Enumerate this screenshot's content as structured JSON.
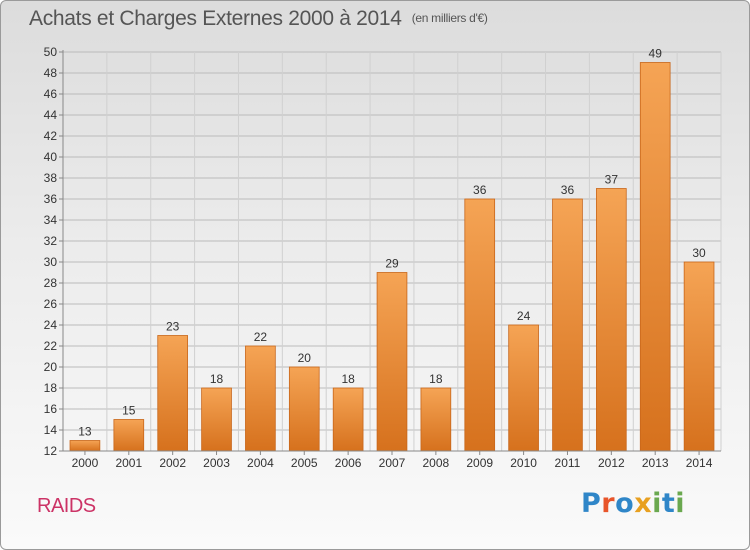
{
  "header": {
    "title": "Achats et Charges Externes 2000 à 2014",
    "unit": "(en milliers d'€)"
  },
  "footer": {
    "commune": "RAIDS"
  },
  "logo": {
    "text": "Proxiti",
    "letters": [
      {
        "ch": "P",
        "color": "#2f86c8"
      },
      {
        "ch": "r",
        "color": "#e8552a"
      },
      {
        "ch": "o",
        "color": "#2f86c8"
      },
      {
        "ch": "x",
        "color": "#e8a020"
      },
      {
        "ch": "i",
        "color": "#6aa84f"
      },
      {
        "ch": "t",
        "color": "#2f86c8"
      },
      {
        "ch": "i",
        "color": "#6aa84f"
      }
    ]
  },
  "colors": {
    "bar_top": "#f5a455",
    "bar_bottom": "#d6711d",
    "bar_edge": "#c8661a",
    "grid": "#bbbbbb",
    "text": "#333333"
  },
  "chart_data": {
    "type": "bar",
    "title": "Achats et Charges Externes 2000 à 2014",
    "subtitle": "(en milliers d'€)",
    "categories": [
      "2000",
      "2001",
      "2002",
      "2003",
      "2004",
      "2005",
      "2006",
      "2007",
      "2008",
      "2009",
      "2010",
      "2011",
      "2012",
      "2013",
      "2014"
    ],
    "values": [
      13,
      15,
      23,
      18,
      22,
      20,
      18,
      29,
      18,
      36,
      24,
      36,
      37,
      49,
      30
    ],
    "ylim": [
      12,
      50
    ],
    "yticks": [
      12,
      14,
      16,
      18,
      20,
      22,
      24,
      26,
      28,
      30,
      32,
      34,
      36,
      38,
      40,
      42,
      44,
      46,
      48,
      50
    ],
    "grid": true,
    "data_labels": true
  }
}
